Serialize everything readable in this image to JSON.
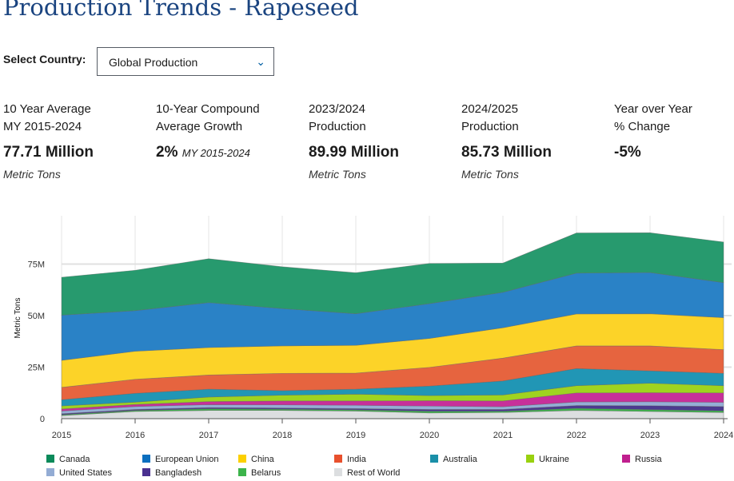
{
  "page": {
    "title": "Production Trends - Rapeseed",
    "select_label": "Select Country:",
    "select_value": "Global Production"
  },
  "stats": [
    {
      "label1": "10 Year Average",
      "label2": "MY 2015-2024",
      "value": "77.71 Million",
      "note": "",
      "unit": "Metric Tons"
    },
    {
      "label1": "10-Year Compound",
      "label2": "Average Growth",
      "value": "2%",
      "note": "MY 2015-2024",
      "unit": ""
    },
    {
      "label1": "2023/2024",
      "label2": "Production",
      "value": "89.99 Million",
      "note": "",
      "unit": "Metric Tons"
    },
    {
      "label1": "2024/2025",
      "label2": "Production",
      "value": "85.73 Million",
      "note": "",
      "unit": "Metric Tons"
    },
    {
      "label1": "Year over Year",
      "label2": "% Change",
      "value": "-5%",
      "note": "",
      "unit": ""
    }
  ],
  "chart_data": {
    "type": "area",
    "stacked": true,
    "x": [
      2015,
      2016,
      2017,
      2018,
      2019,
      2020,
      2021,
      2022,
      2023,
      2024
    ],
    "ylabel": "Metric Tons",
    "ylim": [
      0,
      95000000
    ],
    "yticks": [
      {
        "v": 0,
        "label": "0"
      },
      {
        "v": 25,
        "label": "25M"
      },
      {
        "v": 50,
        "label": "50M"
      },
      {
        "v": 75,
        "label": "75M"
      }
    ],
    "units": "million metric tons",
    "series": [
      {
        "name": "Rest of World",
        "color": "#dcdee0",
        "values": [
          1.5,
          3.5,
          4.0,
          4.0,
          3.7,
          2.8,
          3.0,
          4.0,
          3.5,
          3.0
        ]
      },
      {
        "name": "Belarus",
        "color": "#3cb44b",
        "values": [
          0.4,
          0.5,
          0.8,
          0.6,
          0.6,
          0.8,
          0.6,
          1.0,
          0.9,
          0.8
        ]
      },
      {
        "name": "Bangladesh",
        "color": "#4b3a8f",
        "values": [
          0.5,
          0.5,
          0.6,
          0.6,
          0.6,
          0.9,
          0.9,
          1.4,
          1.9,
          2.1
        ]
      },
      {
        "name": "United States",
        "color": "#94aed6",
        "values": [
          1.3,
          1.4,
          1.4,
          1.5,
          1.6,
          1.6,
          1.3,
          1.7,
          1.9,
          2.0
        ]
      },
      {
        "name": "Russia",
        "color": "#c7309a",
        "values": [
          1.0,
          1.0,
          1.5,
          1.9,
          2.1,
          2.6,
          2.8,
          4.4,
          4.4,
          4.6
        ]
      },
      {
        "name": "Ukraine",
        "color": "#9fd320",
        "values": [
          1.5,
          1.1,
          2.2,
          2.8,
          3.3,
          2.5,
          2.9,
          3.5,
          4.6,
          3.5
        ]
      },
      {
        "name": "Australia",
        "color": "#2196b5",
        "values": [
          3.0,
          4.3,
          3.8,
          2.2,
          2.4,
          4.6,
          6.8,
          8.3,
          6.0,
          6.0
        ]
      },
      {
        "name": "India",
        "color": "#e6643f",
        "values": [
          6.0,
          6.8,
          6.9,
          8.4,
          7.8,
          9.1,
          11.1,
          11.0,
          12.1,
          11.5
        ]
      },
      {
        "name": "China",
        "color": "#fcd328",
        "values": [
          13.1,
          13.6,
          13.3,
          13.3,
          13.5,
          14.0,
          14.7,
          15.5,
          15.6,
          15.5
        ]
      },
      {
        "name": "European Union",
        "color": "#2a82c6",
        "values": [
          21.9,
          19.7,
          21.8,
          18.1,
          15.3,
          16.9,
          17.2,
          19.8,
          20.0,
          17.0
        ]
      },
      {
        "name": "Canada",
        "color": "#279a6e",
        "values": [
          18.4,
          19.6,
          21.3,
          20.3,
          19.9,
          19.5,
          14.2,
          19.5,
          19.3,
          19.7
        ]
      }
    ],
    "legend_order": [
      "Canada",
      "European Union",
      "China",
      "India",
      "Australia",
      "Ukraine",
      "Russia",
      "United States",
      "Bangladesh",
      "Belarus",
      "Rest of World"
    ],
    "legend_colors": {
      "Canada": "#0b8a5a",
      "European Union": "#0b6fbf",
      "China": "#fcd000",
      "India": "#e8502d",
      "Australia": "#1a8fa8",
      "Ukraine": "#99d10f",
      "Russia": "#c01f8e",
      "United States": "#93acd4",
      "Bangladesh": "#4a3190",
      "Belarus": "#3cb44b",
      "Rest of World": "#dcdee0"
    }
  }
}
